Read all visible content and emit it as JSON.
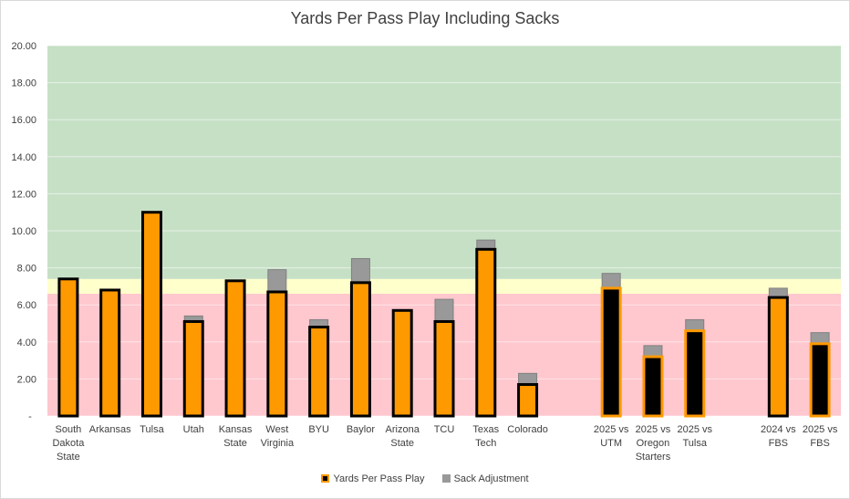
{
  "chart_data": {
    "type": "bar",
    "title": "Yards Per Pass Play Including Sacks",
    "ylim": [
      0,
      20
    ],
    "yticks": [
      "-",
      "2.00",
      "4.00",
      "6.00",
      "8.00",
      "10.00",
      "12.00",
      "14.00",
      "16.00",
      "18.00",
      "20.00"
    ],
    "background_bands": [
      {
        "from": 0,
        "to": 6.6,
        "color": "#FFC7CE"
      },
      {
        "from": 6.6,
        "to": 7.4,
        "color": "#FFFFCC"
      },
      {
        "from": 7.4,
        "to": 20,
        "color": "#C6E0C6"
      }
    ],
    "grid": true,
    "legend_position": "bottom",
    "series": [
      {
        "name": "Yards Per Pass Play",
        "color": "#FF9900"
      },
      {
        "name": "Sack Adjustment",
        "color": "#999999"
      }
    ],
    "categories": [
      {
        "lines": [
          "South",
          "Dakota",
          "State"
        ],
        "value": 7.4,
        "sack": 0,
        "fill": "#FF9900",
        "border": "#000000"
      },
      {
        "lines": [
          "Arkansas"
        ],
        "value": 6.8,
        "sack": 0,
        "fill": "#FF9900",
        "border": "#000000"
      },
      {
        "lines": [
          "Tulsa"
        ],
        "value": 11.0,
        "sack": 0,
        "fill": "#FF9900",
        "border": "#000000"
      },
      {
        "lines": [
          "Utah"
        ],
        "value": 5.1,
        "sack": 0.3,
        "fill": "#FF9900",
        "border": "#000000"
      },
      {
        "lines": [
          "Kansas",
          "State"
        ],
        "value": 7.3,
        "sack": 0,
        "fill": "#FF9900",
        "border": "#000000"
      },
      {
        "lines": [
          "West",
          "Virginia"
        ],
        "value": 6.7,
        "sack": 1.2,
        "fill": "#FF9900",
        "border": "#000000"
      },
      {
        "lines": [
          "BYU"
        ],
        "value": 4.8,
        "sack": 0.4,
        "fill": "#FF9900",
        "border": "#000000"
      },
      {
        "lines": [
          "Baylor"
        ],
        "value": 7.2,
        "sack": 1.3,
        "fill": "#FF9900",
        "border": "#000000"
      },
      {
        "lines": [
          "Arizona",
          "State"
        ],
        "value": 5.7,
        "sack": 0,
        "fill": "#FF9900",
        "border": "#000000"
      },
      {
        "lines": [
          "TCU"
        ],
        "value": 5.1,
        "sack": 1.2,
        "fill": "#FF9900",
        "border": "#000000"
      },
      {
        "lines": [
          "Texas",
          "Tech"
        ],
        "value": 9.0,
        "sack": 0.5,
        "fill": "#FF9900",
        "border": "#000000"
      },
      {
        "lines": [
          "Colorado"
        ],
        "value": 1.7,
        "sack": 0.6,
        "fill": "#FF9900",
        "border": "#000000"
      },
      {
        "lines": [
          ""
        ],
        "value": 0,
        "sack": 0,
        "fill": "#FF9900",
        "border": "#000000"
      },
      {
        "lines": [
          "2025 vs",
          "UTM"
        ],
        "value": 6.9,
        "sack": 0.8,
        "fill": "#000000",
        "border": "#FF9900"
      },
      {
        "lines": [
          "2025 vs",
          "Oregon",
          "Starters"
        ],
        "value": 3.2,
        "sack": 0.6,
        "fill": "#000000",
        "border": "#FF9900"
      },
      {
        "lines": [
          "2025 vs",
          "Tulsa"
        ],
        "value": 4.6,
        "sack": 0.6,
        "fill": "#000000",
        "border": "#FF9900"
      },
      {
        "lines": [
          ""
        ],
        "value": 0,
        "sack": 0,
        "fill": "#FF9900",
        "border": "#000000"
      },
      {
        "lines": [
          "2024 vs",
          "FBS"
        ],
        "value": 6.4,
        "sack": 0.5,
        "fill": "#FF9900",
        "border": "#000000"
      },
      {
        "lines": [
          "2025 vs",
          "FBS"
        ],
        "value": 3.9,
        "sack": 0.6,
        "fill": "#000000",
        "border": "#FF9900"
      }
    ]
  }
}
